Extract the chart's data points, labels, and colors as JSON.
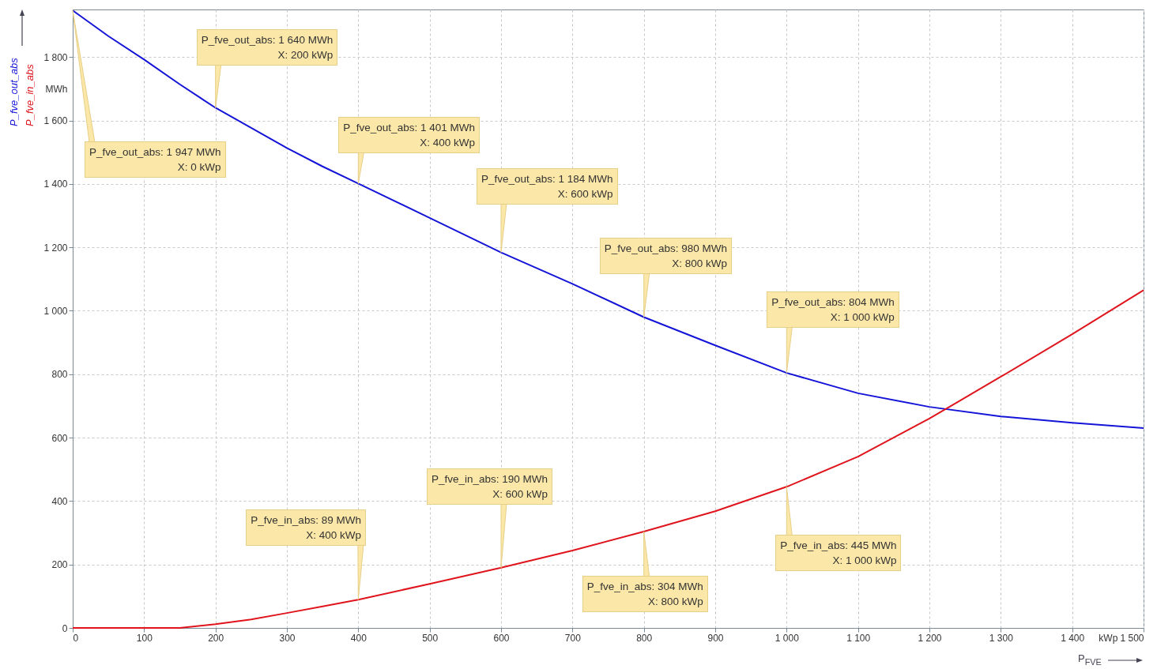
{
  "chart_data": {
    "type": "line",
    "x": [
      0,
      50,
      100,
      150,
      200,
      250,
      300,
      350,
      400,
      500,
      600,
      700,
      800,
      900,
      1000,
      1100,
      1200,
      1300,
      1400,
      1500
    ],
    "series": [
      {
        "name": "P_fve_out_abs",
        "color": "#1414d8",
        "values": [
          1947,
          1866,
          1792,
          1714,
          1640,
          1577,
          1513,
          1455,
          1401,
          1293,
          1184,
          1085,
          980,
          891,
          804,
          740,
          697,
          667,
          647,
          630
        ]
      },
      {
        "name": "P_fve_in_abs",
        "color": "#e0141c",
        "values": [
          0,
          0,
          0,
          0,
          12,
          27,
          47,
          68,
          89,
          139,
          190,
          244,
          304,
          368,
          445,
          540,
          660,
          792,
          926,
          1065
        ]
      }
    ],
    "xlabel": "P$_{FVE}$",
    "xlim": [
      0,
      1500
    ],
    "xticks": [
      0,
      100,
      200,
      300,
      400,
      500,
      600,
      700,
      800,
      900,
      {
        "value": 1000,
        "label": "1 000"
      },
      {
        "value": 1100,
        "label": "1 100"
      },
      {
        "value": 1200,
        "label": "1 200"
      },
      {
        "value": 1300,
        "label": "1 300"
      },
      {
        "value": 1400,
        "label": "1 400"
      },
      {
        "value": 1450,
        "label": "kWp"
      },
      {
        "value": 1500,
        "label": "1 500"
      }
    ],
    "ylim": [
      0,
      1950
    ],
    "yticks": [
      0,
      200,
      400,
      600,
      800,
      {
        "value": 1000,
        "label": "1 000"
      },
      {
        "value": 1200,
        "label": "1 200"
      },
      {
        "value": 1400,
        "label": "1 400"
      },
      {
        "value": 1600,
        "label": "1 600"
      },
      {
        "value": 1700,
        "label": "MWh"
      },
      {
        "value": 1800,
        "label": "1 800"
      }
    ],
    "grid": true,
    "marker": "none",
    "line_style": "solid",
    "annotations": [
      {
        "text": "P_fve_out_abs: 1 947 MWh\nX: 0 kWp",
        "x": 0,
        "y": 1947
      },
      {
        "text": "P_fve_out_abs: 1 640 MWh\nX: 200 kWp",
        "x": 200,
        "y": 1640
      },
      {
        "text": "P_fve_out_abs: 1 401 MWh\nX: 400 kWp",
        "x": 400,
        "y": 1401
      },
      {
        "text": "P_fve_out_abs: 1 184 MWh\nX: 600 kWp",
        "x": 600,
        "y": 1184
      },
      {
        "text": "P_fve_out_abs: 980 MWh\nX: 800 kWp",
        "x": 800,
        "y": 980
      },
      {
        "text": "P_fve_out_abs: 804 MWh\nX: 1 000 kWp",
        "x": 1000,
        "y": 804
      },
      {
        "text": "P_fve_in_abs: 89 MWh\nX: 400 kWp",
        "x": 400,
        "y": 89
      },
      {
        "text": "P_fve_in_abs: 190 MWh\nX: 600 kWp",
        "x": 600,
        "y": 190
      },
      {
        "text": "P_fve_in_abs: 304 MWh\nX: 800 kWp",
        "x": 800,
        "y": 304
      },
      {
        "text": "P_fve_in_abs: 445 MWh\nX: 1 000 kWp",
        "x": 1000,
        "y": 445
      }
    ]
  }
}
